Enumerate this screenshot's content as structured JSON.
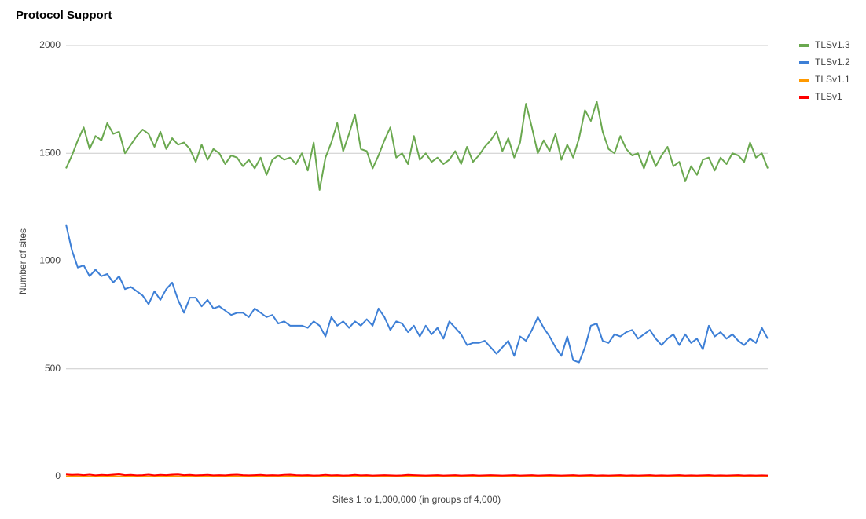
{
  "chart_data": {
    "type": "line",
    "title": "Protocol Support",
    "y_label": "Number of sites",
    "x_label": "Sites 1 to 1,000,000 (in groups of 4,000)",
    "ylim": [
      0,
      2000
    ],
    "yticks": [
      0,
      500,
      1000,
      1500,
      2000
    ],
    "grid": true,
    "legend": "right",
    "series": [
      {
        "name": "TLSv1.3",
        "color": "#6aa84f",
        "values": [
          1430,
          1490,
          1560,
          1620,
          1520,
          1580,
          1560,
          1640,
          1590,
          1600,
          1500,
          1540,
          1580,
          1610,
          1590,
          1530,
          1600,
          1520,
          1570,
          1540,
          1550,
          1520,
          1460,
          1540,
          1470,
          1520,
          1500,
          1450,
          1490,
          1480,
          1440,
          1470,
          1430,
          1480,
          1400,
          1470,
          1490,
          1470,
          1480,
          1450,
          1500,
          1420,
          1550,
          1330,
          1480,
          1550,
          1640,
          1510,
          1590,
          1680,
          1520,
          1510,
          1430,
          1490,
          1560,
          1620,
          1480,
          1500,
          1450,
          1580,
          1470,
          1500,
          1460,
          1480,
          1450,
          1470,
          1510,
          1450,
          1530,
          1460,
          1490,
          1530,
          1560,
          1600,
          1510,
          1570,
          1480,
          1550,
          1730,
          1620,
          1500,
          1560,
          1510,
          1590,
          1470,
          1540,
          1480,
          1570,
          1700,
          1650,
          1740,
          1600,
          1520,
          1500,
          1580,
          1520,
          1490,
          1500,
          1430,
          1510,
          1440,
          1490,
          1530,
          1440,
          1460,
          1370,
          1440,
          1400,
          1470,
          1480,
          1420,
          1480,
          1450,
          1500,
          1490,
          1460,
          1550,
          1480,
          1500,
          1430
        ]
      },
      {
        "name": "TLSv1.2",
        "color": "#3d7fd6",
        "values": [
          1170,
          1050,
          970,
          980,
          930,
          960,
          930,
          940,
          900,
          930,
          870,
          880,
          860,
          840,
          800,
          860,
          820,
          870,
          900,
          820,
          760,
          830,
          830,
          790,
          820,
          780,
          790,
          770,
          750,
          760,
          760,
          740,
          780,
          760,
          740,
          750,
          710,
          720,
          700,
          700,
          700,
          690,
          720,
          700,
          650,
          740,
          700,
          720,
          690,
          720,
          700,
          730,
          700,
          780,
          740,
          680,
          720,
          710,
          670,
          700,
          650,
          700,
          660,
          690,
          640,
          720,
          690,
          660,
          610,
          620,
          620,
          630,
          600,
          570,
          600,
          630,
          560,
          650,
          630,
          680,
          740,
          690,
          650,
          600,
          560,
          650,
          540,
          530,
          600,
          700,
          710,
          630,
          620,
          660,
          650,
          670,
          680,
          640,
          660,
          680,
          640,
          610,
          640,
          660,
          610,
          660,
          620,
          640,
          590,
          700,
          650,
          670,
          640,
          660,
          630,
          610,
          640,
          620,
          690,
          640
        ]
      },
      {
        "name": "TLSv1.1",
        "color": "#ff9900",
        "values": [
          1,
          2,
          1,
          1,
          0,
          2,
          1,
          1,
          2,
          1,
          1,
          2,
          1,
          1,
          0,
          2,
          1,
          1,
          2,
          1,
          1,
          2,
          1,
          1,
          0,
          2,
          1,
          1,
          2,
          1,
          1,
          2,
          1,
          1,
          0,
          2,
          1,
          1,
          2,
          1,
          1,
          2,
          1,
          1,
          0,
          2,
          1,
          1,
          2,
          1,
          1,
          2,
          1,
          1,
          0,
          2,
          1,
          1,
          2,
          1,
          1,
          2,
          1,
          1,
          0,
          2,
          1,
          1,
          2,
          1,
          1,
          2,
          1,
          1,
          0,
          2,
          1,
          1,
          2,
          1,
          1,
          2,
          1,
          1,
          0,
          2,
          1,
          1,
          2,
          1,
          1,
          2,
          1,
          1,
          0,
          2,
          1,
          1,
          2,
          1,
          1,
          2,
          1,
          1,
          0,
          2,
          1,
          1,
          2,
          1,
          1,
          2,
          1,
          1,
          0,
          2,
          1,
          1,
          2,
          1
        ]
      },
      {
        "name": "TLSv1",
        "color": "#ff0000",
        "values": [
          10,
          8,
          9,
          7,
          9,
          6,
          8,
          7,
          9,
          11,
          7,
          8,
          6,
          7,
          9,
          6,
          8,
          7,
          9,
          10,
          7,
          8,
          6,
          7,
          8,
          6,
          7,
          6,
          8,
          9,
          7,
          6,
          7,
          8,
          6,
          7,
          6,
          8,
          9,
          7,
          6,
          7,
          5,
          6,
          8,
          6,
          7,
          5,
          6,
          8,
          6,
          7,
          5,
          6,
          7,
          6,
          5,
          6,
          8,
          7,
          6,
          5,
          6,
          7,
          5,
          6,
          7,
          5,
          6,
          7,
          5,
          6,
          7,
          6,
          5,
          6,
          7,
          5,
          6,
          7,
          5,
          6,
          7,
          6,
          5,
          6,
          7,
          5,
          6,
          7,
          5,
          6,
          5,
          6,
          7,
          5,
          6,
          5,
          6,
          7,
          5,
          6,
          5,
          6,
          7,
          5,
          6,
          5,
          6,
          7,
          5,
          6,
          5,
          6,
          7,
          5,
          6,
          5,
          6,
          5
        ]
      }
    ]
  }
}
